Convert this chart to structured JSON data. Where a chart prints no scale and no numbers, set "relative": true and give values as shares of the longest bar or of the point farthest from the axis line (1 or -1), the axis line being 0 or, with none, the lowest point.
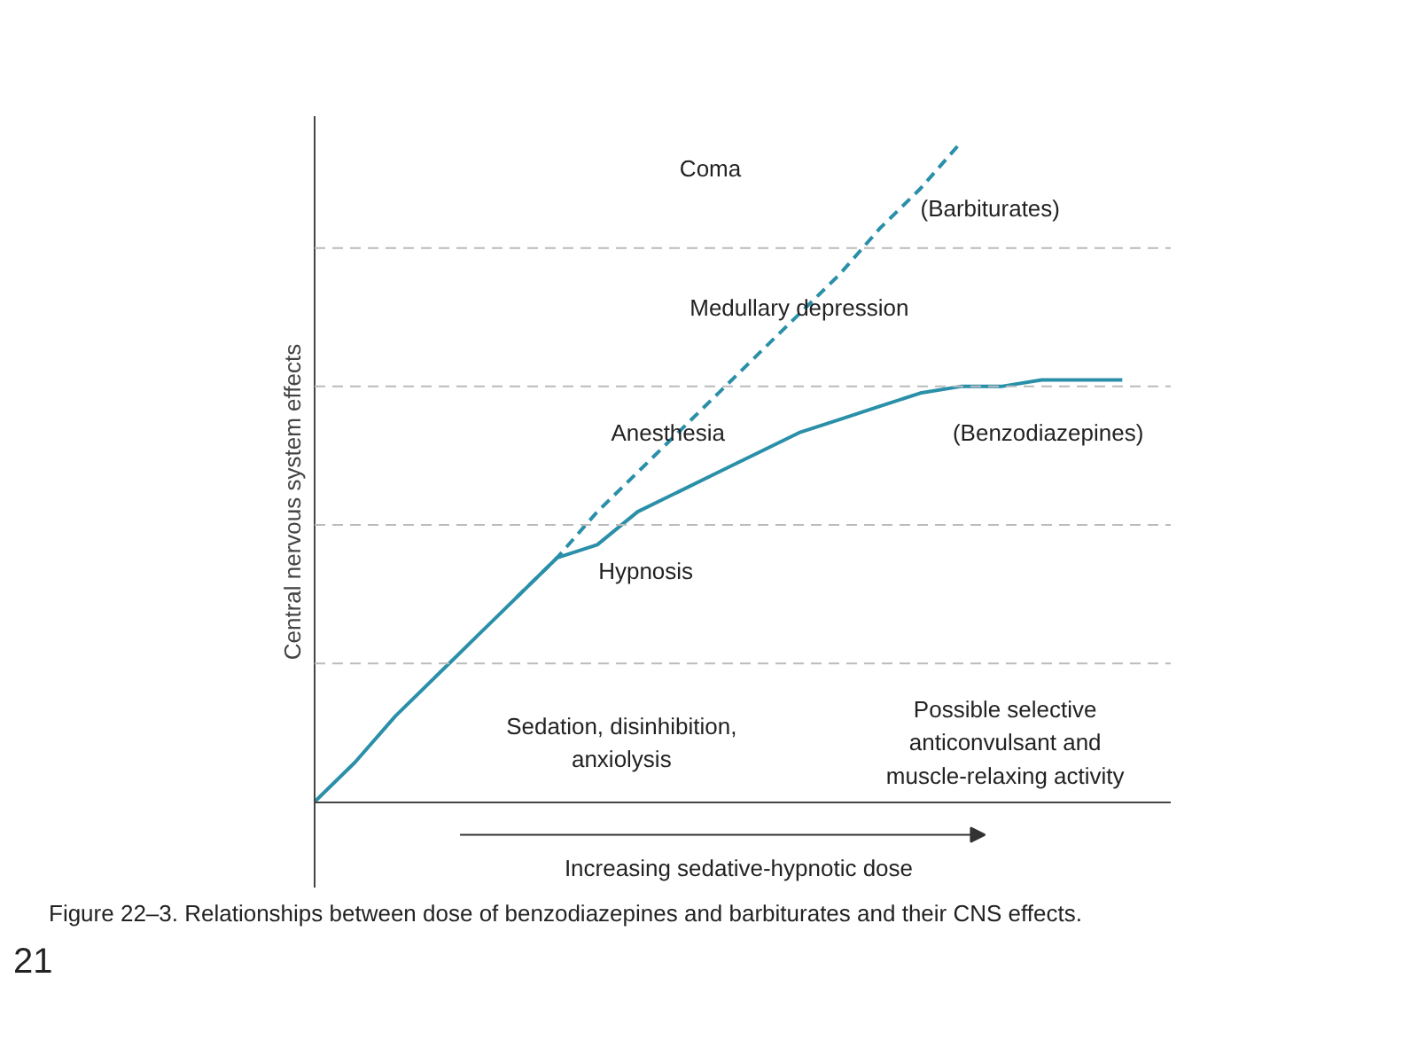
{
  "chart_data": {
    "type": "line",
    "relative": true,
    "xlabel": "Increasing sedative-hypnotic dose",
    "ylabel": "Central nervous system effects",
    "categories": [
      null,
      null,
      null,
      null,
      null,
      null,
      null,
      null,
      null,
      null,
      null,
      null,
      null,
      null,
      null,
      null,
      null,
      null,
      null,
      null,
      null
    ],
    "series": [
      {
        "name": "(Barbiturates)",
        "color": "#2a8fa8",
        "line_style": "dashed",
        "values": [
          null,
          null,
          null,
          null,
          null,
          0.31,
          0.37,
          0.44,
          0.5,
          0.56,
          0.62,
          0.68,
          0.74,
          0.8,
          0.87,
          0.93,
          1.0,
          null,
          null,
          null,
          null
        ]
      },
      {
        "name": "(Benzodiazepines)",
        "color": "#2a8fa8",
        "line_style": "solid",
        "values": [
          0,
          0.06,
          0.13,
          0.19,
          0.25,
          0.31,
          0.37,
          0.39,
          0.44,
          0.47,
          0.5,
          0.53,
          0.56,
          0.58,
          0.6,
          0.62,
          0.63,
          0.63,
          0.64,
          0.64,
          0.64
        ]
      }
    ],
    "ref_lines": [
      {
        "axis": "y",
        "value": 0.21,
        "color": "#bbbbbb",
        "line_style": "dashed"
      },
      {
        "axis": "y",
        "value": 0.42,
        "color": "#bbbbbb",
        "line_style": "dashed"
      },
      {
        "axis": "y",
        "value": 0.63,
        "color": "#bbbbbb",
        "line_style": "dashed"
      },
      {
        "axis": "y",
        "value": 0.84,
        "color": "#bbbbbb",
        "line_style": "dashed"
      }
    ],
    "annotations": [
      "Coma",
      "Medullary depression",
      "Anesthesia",
      "Hypnosis",
      "Sedation, disinhibition,\nanxiolysis",
      "Possible selective\nanticonvulsant and\nmuscle-relaxing activity",
      "Figure 22–3. Relationships between dose of benzodiazepines and barbiturates and their CNS effects.",
      "21"
    ]
  }
}
